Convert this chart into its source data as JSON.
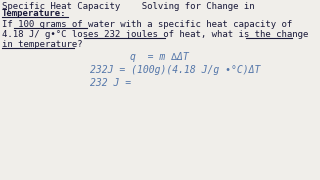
{
  "bg_color": "#f0eeea",
  "top_bar_color": "#c8c8c8",
  "title_line2": "Temperature:",
  "body_line1": "If 100 grams of water with a specific heat capacity of",
  "body_line2": "4.18 J/ g•°C loses 232 joules of heat, what is the change",
  "body_line3": "in temperature?",
  "eq1": "q  = m ∆ΔT",
  "eq2": "232J = (100g)(4.18 J/g •°C)ΔT",
  "eq3": "232 J =",
  "text_color": "#1a1a3a",
  "eq_color": "#5577aa",
  "font_size": 6.5,
  "font_size_eq": 7.0
}
